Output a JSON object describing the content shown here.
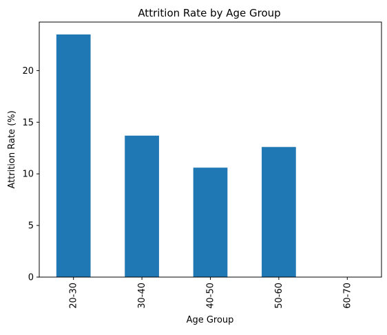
{
  "chart_data": {
    "type": "bar",
    "title": "Attrition Rate by Age Group",
    "xlabel": "Age Group",
    "ylabel": "Attrition Rate (%)",
    "categories": [
      "20-30",
      "30-40",
      "40-50",
      "50-60",
      "60-70"
    ],
    "values": [
      23.5,
      13.7,
      10.6,
      12.6,
      0
    ],
    "ylim": [
      0,
      24.7
    ],
    "yticks": [
      0,
      5,
      10,
      15,
      20
    ],
    "bar_color": "#1f77b4",
    "grid": false
  }
}
